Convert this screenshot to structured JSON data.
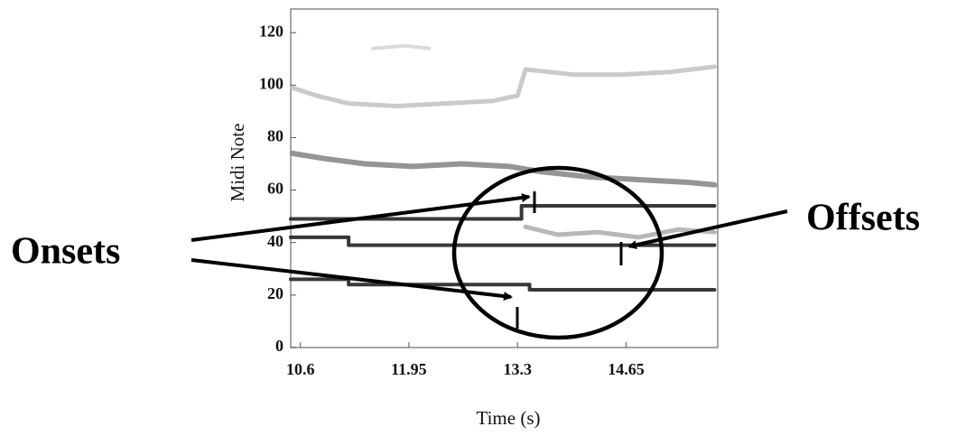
{
  "chart_data": {
    "type": "line",
    "xlabel": "Time (s)",
    "ylabel": "Midi Note",
    "xlim": [
      10.48,
      15.79
    ],
    "ylim": [
      0,
      129
    ],
    "xticks": [
      10.6,
      11.95,
      13.3,
      14.65
    ],
    "yticks": [
      0,
      20,
      40,
      60,
      80,
      100,
      120
    ],
    "annotations": [
      "Onsets",
      "Offsets"
    ],
    "series": [
      {
        "color": "#c4c4c4",
        "line_width": 5,
        "x": [
          10.5,
          10.8,
          11.2,
          11.8,
          12.4,
          13.0,
          13.3,
          13.4,
          14.0,
          14.6,
          15.2,
          15.75
        ],
        "values": [
          99,
          96,
          93,
          92,
          93,
          94,
          96,
          106,
          104,
          104,
          105,
          107
        ]
      },
      {
        "color": "#d6d6d6",
        "line_width": 4,
        "x": [
          11.5,
          11.9,
          12.2
        ],
        "values": [
          114,
          115,
          114
        ]
      },
      {
        "color": "#8a8a8a",
        "line_width": 6,
        "x": [
          10.5,
          10.9,
          11.4,
          12.0,
          12.6,
          13.2,
          13.6,
          14.2,
          14.8,
          15.4,
          15.75
        ],
        "values": [
          74,
          72,
          70,
          69,
          70,
          69,
          67,
          65,
          64,
          63,
          62
        ]
      },
      {
        "color": "#b0b0b0",
        "line_width": 5,
        "x": [
          13.4,
          13.8,
          14.3,
          14.8,
          15.3,
          15.75
        ],
        "values": [
          46,
          43,
          44,
          42,
          45,
          44
        ]
      },
      {
        "color": "#222222",
        "line_width": 4,
        "x": [
          10.48,
          11.2,
          11.2,
          13.45,
          13.45,
          15.75
        ],
        "values": [
          26,
          26,
          24,
          24,
          22,
          22
        ]
      },
      {
        "color": "#222222",
        "line_width": 4,
        "x": [
          10.48,
          11.2,
          11.2,
          15.75
        ],
        "values": [
          42,
          42,
          39,
          39
        ]
      },
      {
        "color": "#222222",
        "line_width": 4,
        "x": [
          10.48,
          13.35,
          13.35,
          15.75
        ],
        "values": [
          49,
          49,
          54,
          54
        ]
      }
    ]
  }
}
